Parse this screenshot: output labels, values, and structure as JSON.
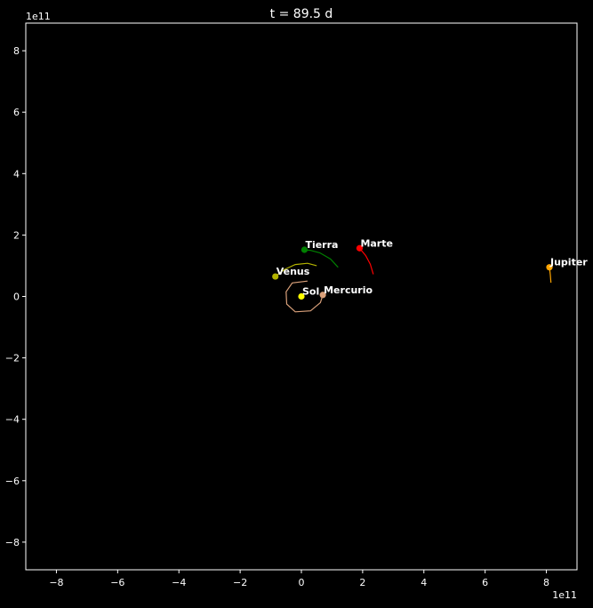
{
  "chart_data": {
    "type": "scatter",
    "title": "t = 89.5 d",
    "xlabel": "",
    "ylabel": "",
    "x_offset_text": "1e11",
    "y_offset_text": "1e11",
    "xlim": [
      -9.0,
      9.0
    ],
    "ylim": [
      -8.9,
      8.9
    ],
    "x_ticks": [
      {
        "value": -8,
        "label": "−8"
      },
      {
        "value": -6,
        "label": "−6"
      },
      {
        "value": -4,
        "label": "−4"
      },
      {
        "value": -2,
        "label": "−2"
      },
      {
        "value": 0,
        "label": "0"
      },
      {
        "value": 2,
        "label": "2"
      },
      {
        "value": 4,
        "label": "4"
      },
      {
        "value": 6,
        "label": "6"
      },
      {
        "value": 8,
        "label": "8"
      }
    ],
    "y_ticks": [
      {
        "value": -8,
        "label": "−8"
      },
      {
        "value": -6,
        "label": "−6"
      },
      {
        "value": -4,
        "label": "−4"
      },
      {
        "value": -2,
        "label": "−2"
      },
      {
        "value": 0,
        "label": "0"
      },
      {
        "value": 2,
        "label": "2"
      },
      {
        "value": 4,
        "label": "4"
      },
      {
        "value": 6,
        "label": "6"
      },
      {
        "value": 8,
        "label": "8"
      }
    ],
    "grid": false,
    "background": "#000000",
    "foreground": "#ffffff",
    "bodies": [
      {
        "name": "Sol",
        "x": 0.0,
        "y": 0.0,
        "color": "#ffff00",
        "trail": []
      },
      {
        "name": "Mercurio",
        "x": 0.7,
        "y": 0.05,
        "color": "#d9a07a",
        "trail": [
          [
            0.2,
            0.5
          ],
          [
            -0.3,
            0.44
          ],
          [
            -0.5,
            0.15
          ],
          [
            -0.48,
            -0.25
          ],
          [
            -0.2,
            -0.5
          ],
          [
            0.3,
            -0.47
          ],
          [
            0.62,
            -0.2
          ],
          [
            0.7,
            0.05
          ]
        ]
      },
      {
        "name": "Venus",
        "x": -0.85,
        "y": 0.65,
        "color": "#b3b300",
        "trail": [
          [
            0.5,
            1.0
          ],
          [
            0.2,
            1.08
          ],
          [
            -0.2,
            1.04
          ],
          [
            -0.55,
            0.88
          ],
          [
            -0.85,
            0.65
          ]
        ]
      },
      {
        "name": "Tierra",
        "x": 0.1,
        "y": 1.52,
        "color": "#008000",
        "trail": [
          [
            1.2,
            0.95
          ],
          [
            0.95,
            1.22
          ],
          [
            0.6,
            1.42
          ],
          [
            0.3,
            1.5
          ],
          [
            0.1,
            1.52
          ]
        ]
      },
      {
        "name": "Marte",
        "x": 1.9,
        "y": 1.57,
        "color": "#ff0000",
        "trail": [
          [
            2.35,
            0.72
          ],
          [
            2.25,
            1.05
          ],
          [
            2.1,
            1.33
          ],
          [
            1.9,
            1.57
          ]
        ]
      },
      {
        "name": "Jupiter",
        "x": 8.1,
        "y": 0.95,
        "color": "#ffa500",
        "trail": [
          [
            8.15,
            0.45
          ],
          [
            8.13,
            0.7
          ],
          [
            8.1,
            0.95
          ]
        ]
      }
    ]
  }
}
